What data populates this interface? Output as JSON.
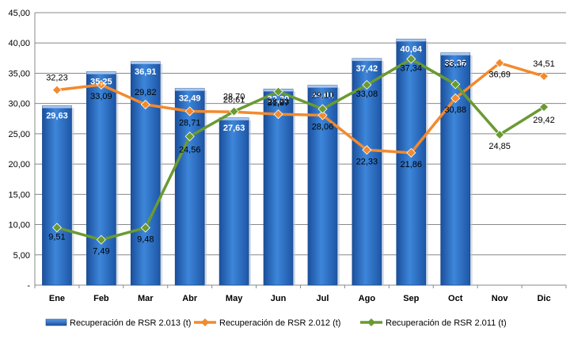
{
  "chart_data": {
    "type": "bar",
    "categories": [
      "Ene",
      "Feb",
      "Mar",
      "Abr",
      "May",
      "Jun",
      "Jul",
      "Ago",
      "Sep",
      "Oct",
      "Nov",
      "Dic"
    ],
    "ylim": [
      0,
      45
    ],
    "yticks": [
      {
        "value": 0,
        "label": "-"
      },
      {
        "value": 5,
        "label": "5,00"
      },
      {
        "value": 10,
        "label": "10,00"
      },
      {
        "value": 15,
        "label": "15,00"
      },
      {
        "value": 20,
        "label": "20,00"
      },
      {
        "value": 25,
        "label": "25,00"
      },
      {
        "value": 30,
        "label": "30,00"
      },
      {
        "value": 35,
        "label": "35,00"
      },
      {
        "value": 40,
        "label": "40,00"
      },
      {
        "value": 45,
        "label": "45,00"
      }
    ],
    "grid": true,
    "legend_position": "bottom",
    "series": [
      {
        "name": "Recuperación de RSR 2.013 (t)",
        "type": "bar",
        "color": "#2c6fc5",
        "values": [
          29.63,
          35.25,
          36.91,
          32.49,
          27.63,
          32.39,
          33.01,
          37.42,
          40.64,
          38.36,
          null,
          null
        ],
        "labels": [
          "29,63",
          "35,25",
          "36,91",
          "32,49",
          "27,63",
          "32,39",
          "33,01",
          "37,42",
          "40,64",
          "38,36",
          "",
          ""
        ]
      },
      {
        "name": "Recuperación de RSR 2.012 (t)",
        "type": "line",
        "color": "#f28a2e",
        "marker": "diamond",
        "values": [
          32.23,
          33.09,
          29.82,
          28.71,
          28.61,
          28.23,
          28.06,
          22.33,
          21.86,
          30.88,
          36.69,
          34.51
        ],
        "labels": [
          "32,23",
          "33,09",
          "29,82",
          "28,71",
          "28,61",
          "28,23",
          "28,06",
          "22,33",
          "21,86",
          "30,88",
          "36,69",
          "34,51"
        ]
      },
      {
        "name": "Recuperación de RSR 2.011 (t)",
        "type": "line",
        "color": "#6a9a32",
        "marker": "diamond",
        "values": [
          9.51,
          7.49,
          9.48,
          24.56,
          28.7,
          31.97,
          29.1,
          33.08,
          37.34,
          33.17,
          24.85,
          29.42
        ],
        "labels": [
          "9,51",
          "7,49",
          "9,48",
          "24,56",
          "28,70",
          "31,97",
          "29,10",
          "33,08",
          "37,34",
          "33,17",
          "24,85",
          "29,42"
        ]
      }
    ]
  }
}
